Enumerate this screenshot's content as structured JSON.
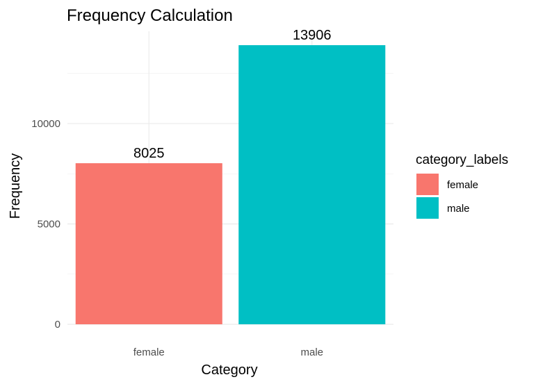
{
  "chart_data": {
    "type": "bar",
    "title": "Frequency Calculation",
    "xlabel": "Category",
    "ylabel": "Frequency",
    "categories": [
      "female",
      "male"
    ],
    "values": [
      8025,
      13906
    ],
    "data_labels": [
      "8025",
      "13906"
    ],
    "colors": [
      "#F8766D",
      "#00BFC4"
    ],
    "ylim": [
      0,
      14600
    ],
    "yticks": [
      0,
      5000,
      10000
    ],
    "ytick_labels": [
      "0",
      "5000",
      "10000"
    ],
    "grid": true,
    "legend": {
      "title": "category_labels",
      "position": "right",
      "entries": [
        "female",
        "male"
      ]
    }
  }
}
